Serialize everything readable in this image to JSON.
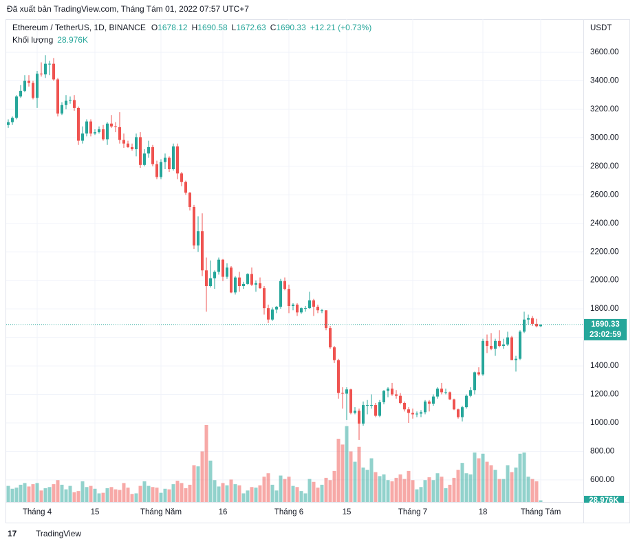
{
  "header": "Đã xuất bản TradingView.com, Tháng Tám 01, 2022 07:57 UTC+7",
  "footer": "TradingView",
  "chart_data": {
    "type": "candlestick",
    "title": "Ethereum / TetherUS, 1D, BINANCE",
    "ohlc_labels": [
      "O",
      "H",
      "L",
      "C"
    ],
    "change": "+12.21 (+0.73%)",
    "volume_title": "Khối lượng",
    "volume_label": "28.976K",
    "axis_unit": "USDT",
    "countdown": "23:02:59",
    "up_color": "#26a69a",
    "down_color": "#ef5350",
    "grid": true,
    "ylim": [
      445,
      3832
    ],
    "yticks": [
      {
        "value": 600,
        "label": "600.00"
      },
      {
        "value": 800,
        "label": "800.00"
      },
      {
        "value": 1000,
        "label": "1000.00"
      },
      {
        "value": 1200,
        "label": "1200.00"
      },
      {
        "value": 1400,
        "label": "1400.00"
      },
      {
        "value": 1600,
        "label": "1600.00"
      },
      {
        "value": 1800,
        "label": "1800.00"
      },
      {
        "value": 2000,
        "label": "2000.00"
      },
      {
        "value": 2200,
        "label": "2200.00"
      },
      {
        "value": 2400,
        "label": "2400.00"
      },
      {
        "value": 2600,
        "label": "2600.00"
      },
      {
        "value": 2800,
        "label": "2800.00"
      },
      {
        "value": 3000,
        "label": "3000.00"
      },
      {
        "value": 3200,
        "label": "3200.00"
      },
      {
        "value": 3400,
        "label": "3400.00"
      },
      {
        "value": 3600,
        "label": "3600.00"
      }
    ],
    "categories": [
      null,
      null,
      null,
      null,
      null,
      null,
      null,
      "Tháng 4",
      null,
      null,
      null,
      null,
      null,
      null,
      null,
      null,
      null,
      null,
      null,
      null,
      null,
      "15",
      null,
      null,
      null,
      null,
      null,
      null,
      null,
      null,
      null,
      null,
      null,
      null,
      null,
      null,
      null,
      "Tháng Năm",
      null,
      null,
      null,
      null,
      null,
      null,
      null,
      null,
      null,
      null,
      null,
      null,
      null,
      null,
      "16",
      null,
      null,
      null,
      null,
      null,
      null,
      null,
      null,
      null,
      null,
      null,
      null,
      null,
      null,
      null,
      "Tháng 6",
      null,
      null,
      null,
      null,
      null,
      null,
      null,
      null,
      null,
      null,
      null,
      null,
      null,
      "15",
      null,
      null,
      null,
      null,
      null,
      null,
      null,
      null,
      null,
      null,
      null,
      null,
      null,
      null,
      null,
      "Tháng 7",
      null,
      null,
      null,
      null,
      null,
      null,
      null,
      null,
      null,
      null,
      null,
      null,
      null,
      null,
      null,
      null,
      "18",
      null,
      null,
      null,
      null,
      null,
      null,
      null,
      null,
      null,
      null,
      null,
      null,
      null,
      "Tháng Tám"
    ],
    "ohlc": [
      [
        3090,
        3130,
        3070,
        3110
      ],
      [
        3110,
        3150,
        3090,
        3140
      ],
      [
        3140,
        3300,
        3130,
        3290
      ],
      [
        3290,
        3370,
        3280,
        3330
      ],
      [
        3330,
        3440,
        3320,
        3400
      ],
      [
        3400,
        3440,
        3360,
        3385
      ],
      [
        3385,
        3400,
        3270,
        3280
      ],
      [
        3280,
        3470,
        3210,
        3450
      ],
      [
        3450,
        3530,
        3430,
        3445
      ],
      [
        3445,
        3580,
        3420,
        3520
      ],
      [
        3520,
        3540,
        3440,
        3520
      ],
      [
        3520,
        3560,
        3400,
        3410
      ],
      [
        3410,
        3420,
        3150,
        3170
      ],
      [
        3170,
        3250,
        3160,
        3230
      ],
      [
        3230,
        3300,
        3200,
        3260
      ],
      [
        3260,
        3290,
        3240,
        3265
      ],
      [
        3265,
        3300,
        3190,
        3210
      ],
      [
        3210,
        3220,
        2950,
        2980
      ],
      [
        2980,
        3080,
        2960,
        3030
      ],
      [
        3030,
        3130,
        3010,
        3115
      ],
      [
        3115,
        3130,
        3010,
        3030
      ],
      [
        3030,
        3060,
        3020,
        3040
      ],
      [
        3040,
        3080,
        3030,
        3060
      ],
      [
        3060,
        3090,
        2980,
        2990
      ],
      [
        2990,
        3110,
        2950,
        3100
      ],
      [
        3100,
        3160,
        3070,
        3080
      ],
      [
        3080,
        3110,
        3040,
        3075
      ],
      [
        3075,
        3180,
        2960,
        2985
      ],
      [
        2985,
        3030,
        2930,
        2960
      ],
      [
        2960,
        2980,
        2930,
        2935
      ],
      [
        2935,
        2960,
        2910,
        2920
      ],
      [
        2920,
        3030,
        2870,
        3005
      ],
      [
        3005,
        3040,
        2790,
        2810
      ],
      [
        2810,
        2920,
        2800,
        2890
      ],
      [
        2890,
        2980,
        2860,
        2935
      ],
      [
        2935,
        2950,
        2800,
        2815
      ],
      [
        2815,
        2840,
        2710,
        2725
      ],
      [
        2725,
        2850,
        2710,
        2830
      ],
      [
        2830,
        2890,
        2780,
        2860
      ],
      [
        2860,
        2870,
        2760,
        2780
      ],
      [
        2780,
        2960,
        2770,
        2940
      ],
      [
        2940,
        2960,
        2710,
        2750
      ],
      [
        2750,
        2760,
        2660,
        2690
      ],
      [
        2690,
        2700,
        2600,
        2615
      ],
      [
        2615,
        2620,
        2490,
        2515
      ],
      [
        2515,
        2530,
        2220,
        2245
      ],
      [
        2245,
        2450,
        2200,
        2345
      ],
      [
        2345,
        2470,
        2030,
        2070
      ],
      [
        2070,
        2160,
        1780,
        1960
      ],
      [
        1960,
        2140,
        1950,
        2015
      ],
      [
        2015,
        2070,
        1940,
        2060
      ],
      [
        2060,
        2160,
        2040,
        2145
      ],
      [
        2145,
        2150,
        1995,
        2025
      ],
      [
        2025,
        2120,
        2010,
        2090
      ],
      [
        2090,
        2100,
        1910,
        1915
      ],
      [
        1915,
        2030,
        1900,
        2020
      ],
      [
        2020,
        2060,
        1920,
        1960
      ],
      [
        1960,
        1990,
        1940,
        1975
      ],
      [
        1975,
        2050,
        1970,
        2045
      ],
      [
        2045,
        2090,
        1960,
        1970
      ],
      [
        1970,
        2000,
        1920,
        1980
      ],
      [
        1980,
        2020,
        1940,
        1945
      ],
      [
        1945,
        1960,
        1760,
        1805
      ],
      [
        1805,
        1830,
        1700,
        1725
      ],
      [
        1725,
        1810,
        1715,
        1795
      ],
      [
        1795,
        1820,
        1770,
        1815
      ],
      [
        1815,
        2010,
        1800,
        1995
      ],
      [
        1995,
        2020,
        1930,
        1940
      ],
      [
        1940,
        1970,
        1770,
        1820
      ],
      [
        1820,
        1840,
        1790,
        1830
      ],
      [
        1830,
        1840,
        1750,
        1775
      ],
      [
        1775,
        1810,
        1765,
        1805
      ],
      [
        1805,
        1820,
        1780,
        1805
      ],
      [
        1805,
        1920,
        1800,
        1860
      ],
      [
        1860,
        1870,
        1750,
        1815
      ],
      [
        1815,
        1830,
        1770,
        1790
      ],
      [
        1790,
        1800,
        1770,
        1790
      ],
      [
        1790,
        1790,
        1650,
        1665
      ],
      [
        1665,
        1680,
        1520,
        1530
      ],
      [
        1530,
        1540,
        1420,
        1440
      ],
      [
        1440,
        1450,
        1170,
        1210
      ],
      [
        1210,
        1250,
        1100,
        1205
      ],
      [
        1205,
        1250,
        1020,
        1235
      ],
      [
        1235,
        1240,
        1060,
        1070
      ],
      [
        1070,
        1110,
        1060,
        1085
      ],
      [
        1085,
        1100,
        880,
        995
      ],
      [
        995,
        1150,
        980,
        1125
      ],
      [
        1125,
        1160,
        1060,
        1125
      ],
      [
        1125,
        1200,
        1100,
        1125
      ],
      [
        1125,
        1140,
        1040,
        1050
      ],
      [
        1050,
        1160,
        1040,
        1145
      ],
      [
        1145,
        1230,
        1130,
        1225
      ],
      [
        1225,
        1250,
        1180,
        1240
      ],
      [
        1240,
        1280,
        1190,
        1200
      ],
      [
        1200,
        1230,
        1170,
        1190
      ],
      [
        1190,
        1210,
        1130,
        1140
      ],
      [
        1140,
        1150,
        1080,
        1095
      ],
      [
        1095,
        1110,
        1000,
        1070
      ],
      [
        1070,
        1100,
        1030,
        1060
      ],
      [
        1060,
        1080,
        1040,
        1065
      ],
      [
        1065,
        1090,
        1040,
        1075
      ],
      [
        1075,
        1160,
        1060,
        1150
      ],
      [
        1150,
        1160,
        1080,
        1135
      ],
      [
        1135,
        1200,
        1120,
        1185
      ],
      [
        1185,
        1250,
        1170,
        1240
      ],
      [
        1240,
        1280,
        1200,
        1215
      ],
      [
        1215,
        1240,
        1200,
        1215
      ],
      [
        1215,
        1220,
        1160,
        1165
      ],
      [
        1165,
        1170,
        1090,
        1095
      ],
      [
        1095,
        1100,
        1030,
        1040
      ],
      [
        1040,
        1120,
        1010,
        1110
      ],
      [
        1110,
        1200,
        1100,
        1190
      ],
      [
        1190,
        1250,
        1180,
        1230
      ],
      [
        1230,
        1360,
        1200,
        1355
      ],
      [
        1355,
        1390,
        1330,
        1340
      ],
      [
        1340,
        1590,
        1330,
        1575
      ],
      [
        1575,
        1620,
        1490,
        1540
      ],
      [
        1540,
        1630,
        1510,
        1520
      ],
      [
        1520,
        1590,
        1470,
        1575
      ],
      [
        1575,
        1650,
        1530,
        1540
      ],
      [
        1540,
        1590,
        1520,
        1550
      ],
      [
        1550,
        1640,
        1540,
        1600
      ],
      [
        1600,
        1610,
        1440,
        1440
      ],
      [
        1440,
        1470,
        1360,
        1450
      ],
      [
        1450,
        1650,
        1440,
        1640
      ],
      [
        1640,
        1780,
        1630,
        1725
      ],
      [
        1725,
        1760,
        1690,
        1735
      ],
      [
        1735,
        1750,
        1680,
        1695
      ],
      [
        1695,
        1730,
        1670,
        1678.12
      ],
      [
        1678.12,
        1690.58,
        1672.63,
        1690.33
      ]
    ],
    "volume": [
      280,
      230,
      250,
      300,
      330,
      270,
      310,
      330,
      200,
      240,
      260,
      310,
      380,
      300,
      220,
      280,
      170,
      190,
      360,
      260,
      280,
      230,
      150,
      160,
      240,
      260,
      220,
      210,
      330,
      250,
      140,
      150,
      280,
      360,
      280,
      260,
      250,
      160,
      230,
      220,
      310,
      370,
      330,
      240,
      300,
      640,
      620,
      880,
      1340,
      720,
      380,
      270,
      330,
      290,
      390,
      310,
      290,
      150,
      200,
      260,
      250,
      290,
      440,
      500,
      300,
      200,
      460,
      400,
      440,
      280,
      260,
      190,
      150,
      400,
      350,
      250,
      300,
      420,
      380,
      540,
      1100,
      1000,
      1320,
      880,
      700,
      960,
      600,
      560,
      760,
      520,
      450,
      480,
      380,
      360,
      420,
      480,
      400,
      540,
      380,
      220,
      260,
      380,
      430,
      380,
      500,
      440,
      240,
      300,
      420,
      560,
      680,
      500,
      480,
      860,
      760,
      840,
      700,
      640,
      560,
      400,
      400,
      640,
      520,
      600,
      840,
      860,
      440,
      400,
      360,
      28.976
    ]
  }
}
